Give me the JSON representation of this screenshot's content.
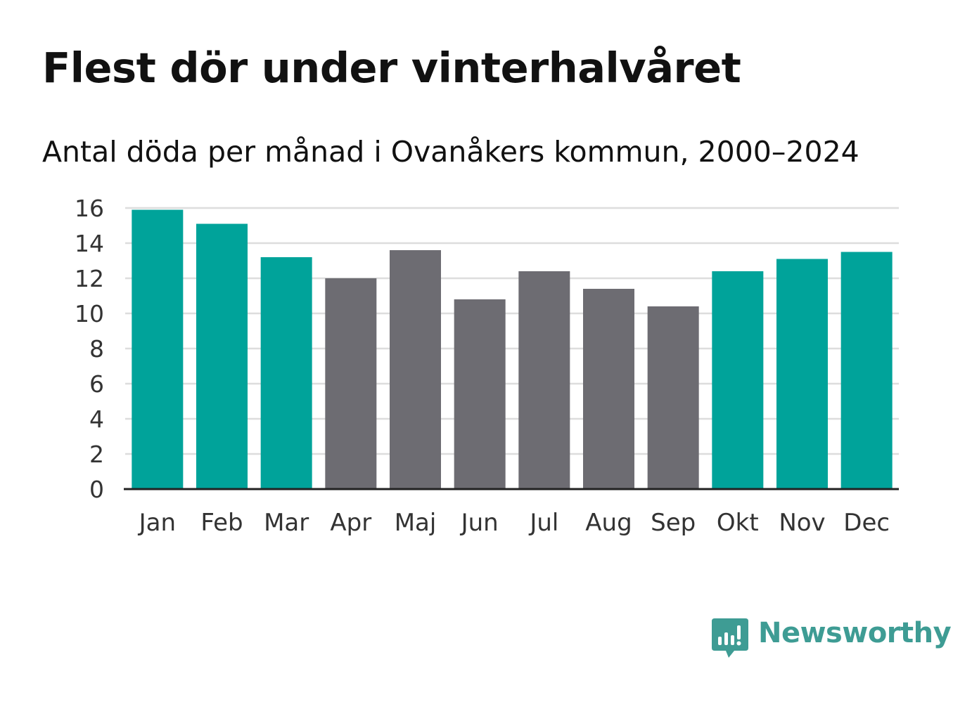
{
  "colors": {
    "accent": "#00A39A",
    "neutral": "#6D6C72",
    "grid": "#DDDDDD",
    "axis": "#222222",
    "text": "#111111",
    "tick_text": "#333333",
    "brand": "#3E9C94"
  },
  "chart_data": {
    "type": "bar",
    "title": "Flest dör under vinterhalvåret",
    "subtitle": "Antal döda per månad i Ovanåkers kommun, 2000–2024",
    "categories": [
      "Jan",
      "Feb",
      "Mar",
      "Apr",
      "Maj",
      "Jun",
      "Jul",
      "Aug",
      "Sep",
      "Okt",
      "Nov",
      "Dec"
    ],
    "values": [
      15.9,
      15.1,
      13.2,
      12.0,
      13.6,
      10.8,
      12.4,
      11.4,
      10.4,
      12.4,
      13.1,
      13.5
    ],
    "highlight": [
      true,
      true,
      true,
      false,
      false,
      false,
      false,
      false,
      false,
      true,
      true,
      true
    ],
    "ylim": [
      0,
      16
    ],
    "yticks": [
      0,
      2,
      4,
      6,
      8,
      10,
      12,
      14,
      16
    ],
    "xlabel": "",
    "ylabel": "",
    "grid": true,
    "legend": "none"
  },
  "logo": {
    "name": "Newsworthy",
    "icon": "bar-chart-speech-bubble-icon"
  }
}
